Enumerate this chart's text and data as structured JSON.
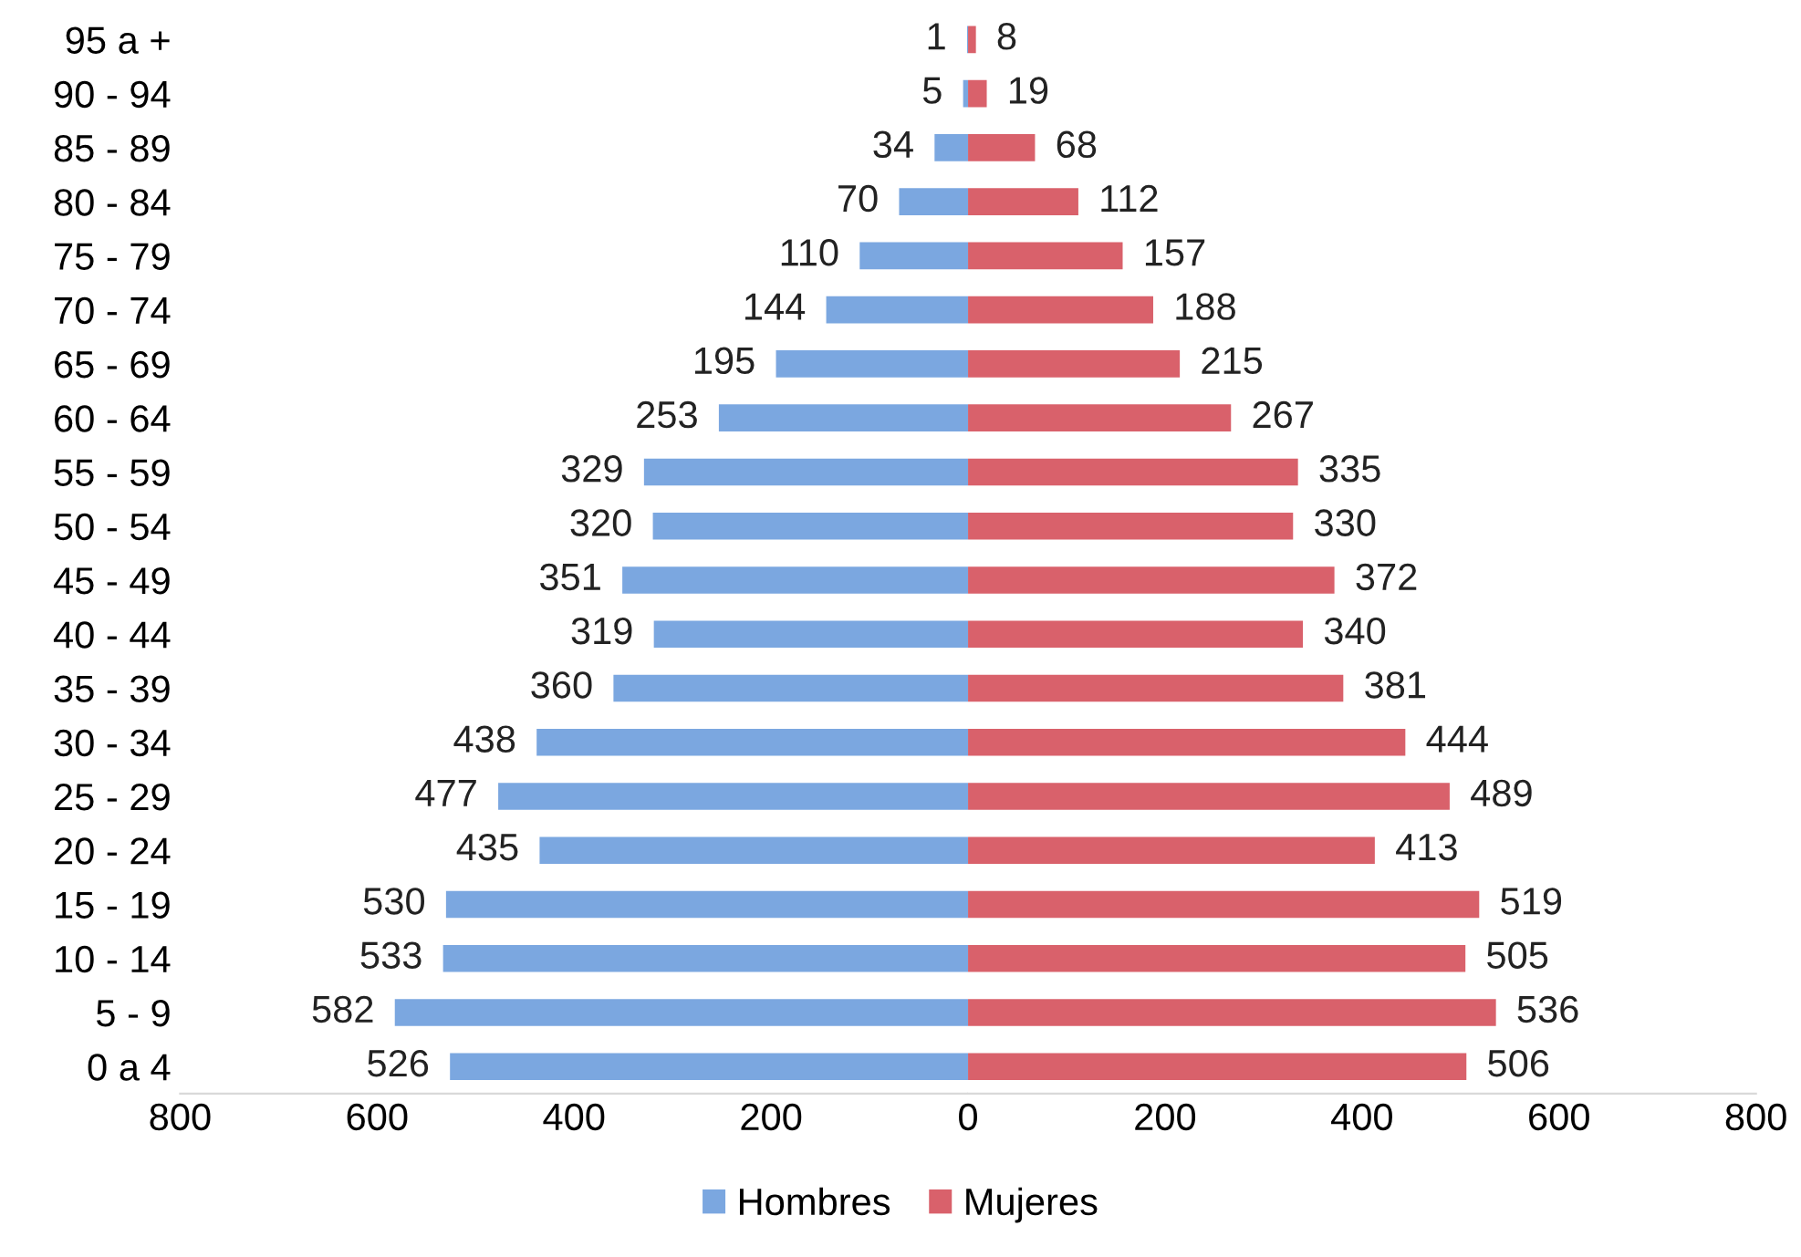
{
  "chart_data": [
    {
      "type": "bar",
      "orientation": "horizontal",
      "legend": "bottom",
      "grid": false,
      "categories": [
        "95 a +",
        "90 - 94",
        "85 - 89",
        "80 - 84",
        "75 - 79",
        "70 - 74",
        "65 - 69",
        "60 - 64",
        "55 - 59",
        "50 - 54",
        "45 - 49",
        "40 - 44",
        "35 - 39",
        "30 - 34",
        "25 - 29",
        "20 - 24",
        "15 - 19",
        "10 - 14",
        "5 - 9",
        "0 a 4"
      ],
      "series": [
        {
          "name": "Hombres",
          "color": "#7ba7e0",
          "values": [
            1,
            5,
            34,
            70,
            110,
            144,
            195,
            253,
            329,
            320,
            351,
            319,
            360,
            438,
            477,
            435,
            530,
            533,
            582,
            526
          ]
        }
      ],
      "data_labels": true,
      "xlim": [
        800,
        0
      ],
      "xticks": [
        800,
        600,
        400,
        200
      ]
    },
    {
      "type": "bar",
      "orientation": "horizontal",
      "legend": "bottom",
      "grid": false,
      "tick_labels": "x",
      "categories": [
        null,
        null,
        null,
        null,
        null,
        null,
        null,
        null,
        null,
        null,
        null,
        null,
        null,
        null,
        null,
        null,
        null,
        null,
        null,
        null
      ],
      "series": [
        {
          "name": "Mujeres",
          "color": "#d9616b",
          "values": [
            8,
            19,
            68,
            112,
            157,
            188,
            215,
            267,
            335,
            330,
            372,
            340,
            381,
            444,
            489,
            413,
            519,
            505,
            536,
            506
          ]
        }
      ],
      "data_labels": true,
      "xlim": [
        0,
        800
      ],
      "xticks": [
        0,
        200,
        400,
        600,
        800
      ]
    }
  ]
}
